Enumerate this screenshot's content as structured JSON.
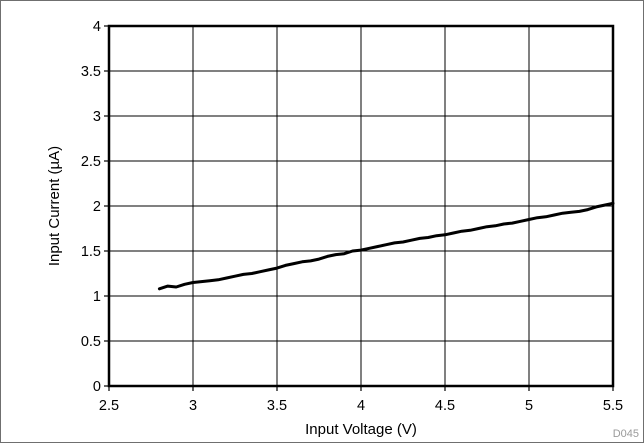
{
  "chart_data": {
    "type": "line",
    "xlabel": "Input Voltage (V)",
    "ylabel": "Input Current (µA)",
    "xlim": [
      2.5,
      5.5
    ],
    "ylim": [
      0,
      4
    ],
    "xticks": [
      "2.5",
      "3",
      "3.5",
      "4",
      "4.5",
      "5",
      "5.5"
    ],
    "yticks": [
      "0",
      "0.5",
      "1",
      "1.5",
      "2",
      "2.5",
      "3",
      "3.5",
      "4"
    ],
    "grid": true,
    "series": [
      {
        "color": "#000000",
        "x": [
          2.8,
          2.85,
          2.9,
          2.95,
          3.0,
          3.05,
          3.1,
          3.15,
          3.2,
          3.25,
          3.3,
          3.35,
          3.4,
          3.45,
          3.5,
          3.55,
          3.6,
          3.65,
          3.7,
          3.75,
          3.8,
          3.85,
          3.9,
          3.95,
          4.0,
          4.05,
          4.1,
          4.15,
          4.2,
          4.25,
          4.3,
          4.35,
          4.4,
          4.45,
          4.5,
          4.55,
          4.6,
          4.65,
          4.7,
          4.75,
          4.8,
          4.85,
          4.9,
          4.95,
          5.0,
          5.05,
          5.1,
          5.15,
          5.2,
          5.25,
          5.3,
          5.35,
          5.4,
          5.45,
          5.5
        ],
        "y": [
          1.08,
          1.11,
          1.1,
          1.13,
          1.15,
          1.16,
          1.17,
          1.18,
          1.2,
          1.22,
          1.24,
          1.25,
          1.27,
          1.29,
          1.31,
          1.34,
          1.36,
          1.38,
          1.39,
          1.41,
          1.44,
          1.46,
          1.47,
          1.5,
          1.51,
          1.53,
          1.55,
          1.57,
          1.59,
          1.6,
          1.62,
          1.64,
          1.65,
          1.67,
          1.68,
          1.7,
          1.72,
          1.73,
          1.75,
          1.77,
          1.78,
          1.8,
          1.81,
          1.83,
          1.85,
          1.87,
          1.88,
          1.9,
          1.92,
          1.93,
          1.94,
          1.96,
          1.99,
          2.01,
          2.03
        ]
      }
    ]
  },
  "footer": {
    "code": "D045"
  }
}
